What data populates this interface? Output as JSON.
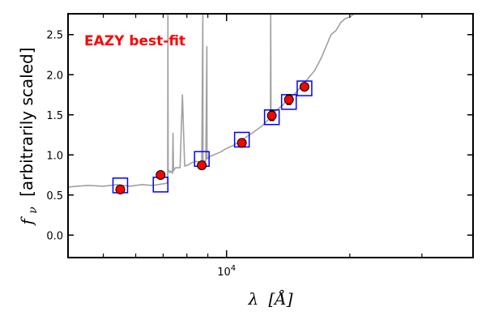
{
  "chart_data": {
    "type": "scatter",
    "title": "",
    "annotation": "EAZY best-fit",
    "annotation_color": "#ff0000",
    "xlabel_prefix": "λ",
    "xlabel_unit": "[Å]",
    "ylabel_prefix": "f",
    "ylabel_sub": "ν",
    "ylabel_rest": "[arbitrarily scaled]",
    "x_scale": "log",
    "xlim": [
      4100,
      40000
    ],
    "ylim": [
      -0.28,
      2.76
    ],
    "x_ticks": [
      {
        "value": 10000,
        "label_base": "10",
        "label_exp": "4"
      }
    ],
    "y_ticks": [
      {
        "value": 0.0,
        "label": "0.0"
      },
      {
        "value": 0.5,
        "label": "0.5"
      },
      {
        "value": 1.0,
        "label": "1.0"
      },
      {
        "value": 1.5,
        "label": "1.5"
      },
      {
        "value": 2.0,
        "label": "2.0"
      },
      {
        "value": 2.5,
        "label": "2.5"
      }
    ],
    "series": [
      {
        "name": "template",
        "kind": "line",
        "color": "#a0a0a0",
        "x": [
          4100,
          4300,
          4600,
          5000,
          5400,
          5800,
          6200,
          6600,
          7000,
          7180,
          7190,
          7200,
          7250,
          7300,
          7380,
          7400,
          7420,
          7500,
          7700,
          7800,
          7900,
          8100,
          8200,
          8400,
          8700,
          8750,
          8760,
          8800,
          8900,
          8950,
          8960,
          9000,
          9100,
          9300,
          9500,
          9700,
          9900,
          10400,
          11000,
          11600,
          12200,
          12700,
          12800,
          12820,
          12840,
          12900,
          13200,
          13700,
          14200,
          14600,
          15200,
          15800,
          16400,
          17000,
          17500,
          18000,
          18500,
          19000,
          19500,
          20000,
          20500
        ],
        "y": [
          0.6,
          0.61,
          0.62,
          0.61,
          0.63,
          0.61,
          0.63,
          0.62,
          0.64,
          0.65,
          2.76,
          0.82,
          0.78,
          0.8,
          0.77,
          1.27,
          0.8,
          0.84,
          0.84,
          1.75,
          0.86,
          0.88,
          0.9,
          0.92,
          0.91,
          2.76,
          0.93,
          0.93,
          0.92,
          2.35,
          0.95,
          0.96,
          0.98,
          1.0,
          1.02,
          1.04,
          1.07,
          1.12,
          1.2,
          1.28,
          1.36,
          1.45,
          1.47,
          2.76,
          1.5,
          1.52,
          1.55,
          1.62,
          1.7,
          1.75,
          1.85,
          1.95,
          2.05,
          2.2,
          2.35,
          2.5,
          2.55,
          2.65,
          2.7,
          2.72,
          2.76
        ]
      },
      {
        "name": "model photometry",
        "kind": "open-square",
        "color": "#0000ff",
        "x": [
          5500,
          6900,
          8700,
          10900,
          12900,
          14200,
          15500
        ],
        "y": [
          0.62,
          0.63,
          0.95,
          1.19,
          1.47,
          1.66,
          1.83
        ]
      },
      {
        "name": "observed photometry",
        "kind": "filled-circle",
        "color": "#ff0000",
        "edge_color": "#000000",
        "x": [
          5500,
          6900,
          8700,
          10900,
          12900,
          14200,
          15500
        ],
        "y": [
          0.57,
          0.75,
          0.87,
          1.15,
          1.49,
          1.69,
          1.85
        ],
        "yerr": [
          0.02,
          0.02,
          0.02,
          0.03,
          0.06,
          0.06,
          0.04
        ]
      }
    ]
  }
}
